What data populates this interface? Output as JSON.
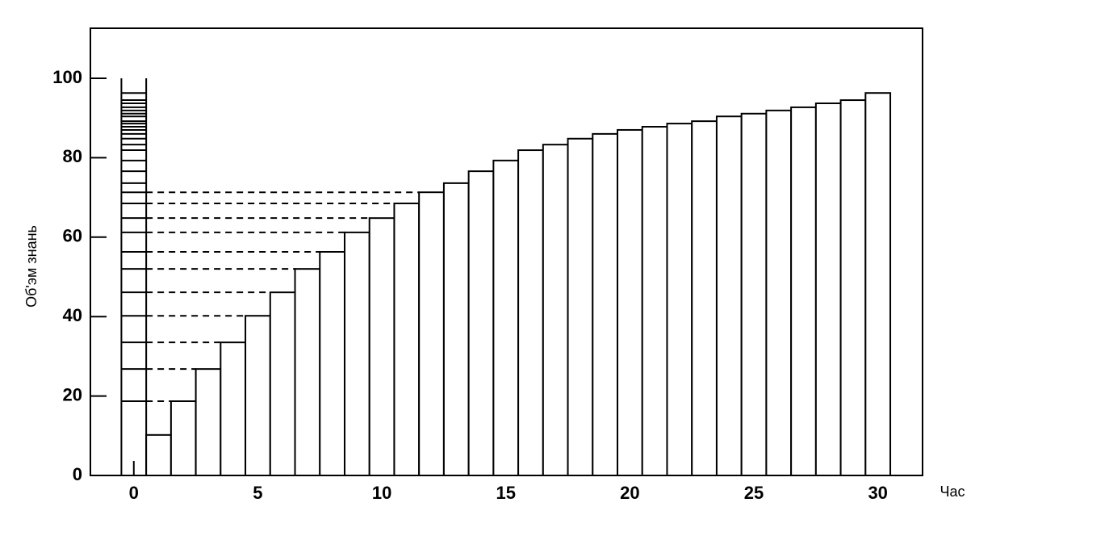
{
  "chart_data": {
    "type": "bar",
    "x_label": "Час",
    "y_label": "Об'эм знань",
    "x": [
      1,
      2,
      3,
      4,
      5,
      6,
      7,
      8,
      9,
      10,
      11,
      12,
      13,
      14,
      15,
      16,
      17,
      18,
      19,
      20,
      21,
      22,
      23,
      24,
      25,
      26,
      27,
      28,
      29,
      30
    ],
    "values": [
      10.2,
      18.7,
      26.8,
      33.5,
      40.2,
      46.1,
      52.0,
      56.3,
      61.2,
      64.8,
      68.5,
      71.3,
      73.6,
      76.6,
      79.3,
      81.9,
      83.3,
      84.8,
      86.0,
      87.0,
      87.8,
      88.6,
      89.2,
      90.4,
      91.1,
      91.9,
      92.7,
      93.7,
      94.5,
      96.3
    ],
    "color": "#ffffff",
    "xlim": [
      -1.75,
      31.8
    ],
    "xticks": [
      0,
      5,
      10,
      15,
      20,
      25,
      30
    ],
    "ylim": [
      0,
      112.6
    ],
    "yticks": [
      0,
      20,
      40,
      60,
      80,
      100
    ],
    "grid": false
  }
}
